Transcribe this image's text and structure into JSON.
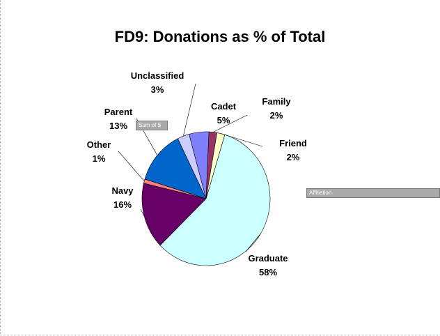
{
  "chart_data": {
    "type": "pie",
    "title": "FD9: Donations as % of Total",
    "slices": [
      {
        "name": "Graduate",
        "label": "58%",
        "value": 58,
        "color": "#ccffff"
      },
      {
        "name": "Navy",
        "label": "16%",
        "value": 16,
        "color": "#660066"
      },
      {
        "name": "Other",
        "label": "1%",
        "value": 1,
        "color": "#ff8080"
      },
      {
        "name": "Parent",
        "label": "13%",
        "value": 13,
        "color": "#0066cc"
      },
      {
        "name": "Unclassified",
        "label": "3%",
        "value": 3,
        "color": "#ccccff"
      },
      {
        "name": "Cadet",
        "label": "5%",
        "value": 5,
        "color": "#8080ff"
      },
      {
        "name": "Family",
        "label": "2%",
        "value": 2,
        "color": "#993366"
      },
      {
        "name": "Friend",
        "label": "2%",
        "value": 2,
        "color": "#ffffcc"
      }
    ]
  },
  "pivot": {
    "data_field": "Sum of $",
    "category_field": "Affiliation"
  }
}
